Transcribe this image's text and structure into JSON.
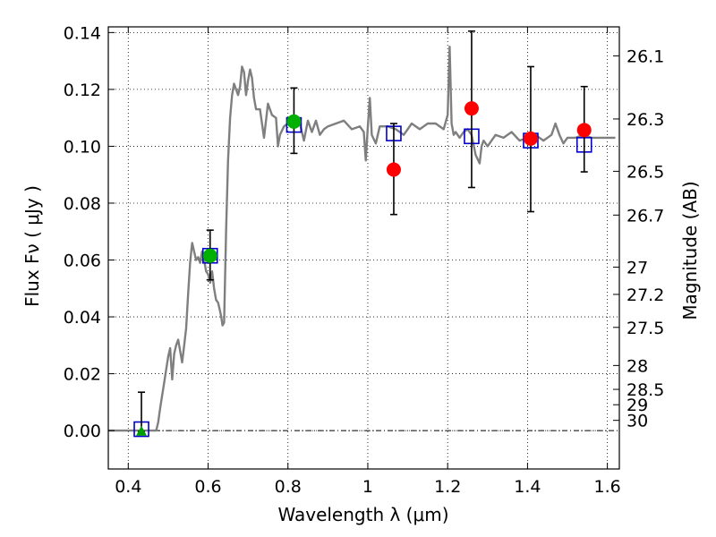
{
  "chart_data": {
    "type": "scatter",
    "xlabel": "Wavelength  λ (μm)",
    "ylabel": "Flux  Fν  ( μJy )",
    "ylabel_right": "Magnitude (AB)",
    "xlim": [
      0.35,
      1.63
    ],
    "ylim": [
      -0.0135,
      0.142
    ],
    "grid": true,
    "x_ticks": [
      0.4,
      0.6,
      0.8,
      1.0,
      1.2,
      1.4,
      1.6
    ],
    "x_tick_labels": [
      "0.4",
      "0.6",
      "0.8",
      "1",
      "1.2",
      "1.4",
      "1.6"
    ],
    "y_ticks": [
      0.0,
      0.02,
      0.04,
      0.06,
      0.08,
      0.1,
      0.12,
      0.14
    ],
    "y_tick_labels": [
      "0.00",
      "0.02",
      "0.04",
      "0.06",
      "0.08",
      "0.10",
      "0.12",
      "0.14"
    ],
    "mag_ticks": [
      {
        "label": "26.1",
        "flux": 0.1318
      },
      {
        "label": "26.3",
        "flux": 0.1096
      },
      {
        "label": "26.5",
        "flux": 0.0912
      },
      {
        "label": "26.7",
        "flux": 0.0758
      },
      {
        "label": "27",
        "flux": 0.0575
      },
      {
        "label": "27.2",
        "flux": 0.0479
      },
      {
        "label": "27.5",
        "flux": 0.0363
      },
      {
        "label": "28",
        "flux": 0.0229
      },
      {
        "label": "28.5",
        "flux": 0.0145
      },
      {
        "label": "29",
        "flux": 0.0091
      },
      {
        "label": "30",
        "flux": 0.0036
      }
    ],
    "series": [
      {
        "kind": "line",
        "color": "#7f7f7f",
        "x": [
          0.35,
          0.47,
          0.475,
          0.48,
          0.49,
          0.5,
          0.505,
          0.51,
          0.515,
          0.52,
          0.525,
          0.53,
          0.535,
          0.54,
          0.545,
          0.55,
          0.555,
          0.56,
          0.565,
          0.57,
          0.575,
          0.58,
          0.585,
          0.59,
          0.595,
          0.6,
          0.605,
          0.61,
          0.615,
          0.62,
          0.625,
          0.63,
          0.633,
          0.636,
          0.64,
          0.645,
          0.65,
          0.655,
          0.66,
          0.665,
          0.67,
          0.675,
          0.68,
          0.685,
          0.69,
          0.695,
          0.7,
          0.705,
          0.71,
          0.715,
          0.72,
          0.73,
          0.74,
          0.75,
          0.76,
          0.77,
          0.775,
          0.78,
          0.79,
          0.8,
          0.81,
          0.82,
          0.83,
          0.84,
          0.85,
          0.86,
          0.87,
          0.88,
          0.89,
          0.9,
          0.92,
          0.94,
          0.96,
          0.98,
          0.99,
          0.995,
          1.0,
          1.005,
          1.01,
          1.02,
          1.03,
          1.05,
          1.07,
          1.09,
          1.11,
          1.13,
          1.15,
          1.17,
          1.19,
          1.2,
          1.205,
          1.21,
          1.215,
          1.22,
          1.23,
          1.24,
          1.25,
          1.26,
          1.27,
          1.28,
          1.285,
          1.29,
          1.3,
          1.32,
          1.34,
          1.36,
          1.38,
          1.4,
          1.42,
          1.44,
          1.46,
          1.47,
          1.48,
          1.49,
          1.5,
          1.52,
          1.54,
          1.56,
          1.58,
          1.6,
          1.62
        ],
        "y": [
          0.0,
          0.0,
          0.003,
          0.008,
          0.017,
          0.026,
          0.029,
          0.018,
          0.027,
          0.03,
          0.032,
          0.028,
          0.024,
          0.03,
          0.036,
          0.048,
          0.059,
          0.066,
          0.063,
          0.06,
          0.061,
          0.059,
          0.063,
          0.06,
          0.056,
          0.055,
          0.052,
          0.056,
          0.05,
          0.046,
          0.045,
          0.042,
          0.04,
          0.037,
          0.038,
          0.07,
          0.095,
          0.11,
          0.118,
          0.122,
          0.12,
          0.118,
          0.121,
          0.128,
          0.126,
          0.118,
          0.123,
          0.127,
          0.124,
          0.117,
          0.113,
          0.113,
          0.103,
          0.115,
          0.111,
          0.11,
          0.1,
          0.104,
          0.107,
          0.108,
          0.11,
          0.107,
          0.108,
          0.102,
          0.109,
          0.105,
          0.109,
          0.104,
          0.106,
          0.107,
          0.108,
          0.109,
          0.106,
          0.107,
          0.105,
          0.095,
          0.107,
          0.117,
          0.104,
          0.101,
          0.107,
          0.107,
          0.106,
          0.104,
          0.108,
          0.106,
          0.108,
          0.108,
          0.106,
          0.111,
          0.135,
          0.108,
          0.104,
          0.105,
          0.103,
          0.105,
          0.106,
          0.104,
          0.097,
          0.094,
          0.1,
          0.102,
          0.1,
          0.104,
          0.103,
          0.105,
          0.102,
          0.103,
          0.104,
          0.102,
          0.104,
          0.108,
          0.104,
          0.101,
          0.103,
          0.103,
          0.104,
          0.103,
          0.103,
          0.103,
          0.103
        ]
      },
      {
        "kind": "open-squares",
        "color": "#0000cc",
        "x": [
          0.433,
          0.605,
          0.815,
          1.065,
          1.26,
          1.408,
          1.542
        ],
        "y": [
          0.0005,
          0.0615,
          0.1075,
          0.1045,
          0.1035,
          0.102,
          0.1005
        ]
      },
      {
        "kind": "errorbars",
        "color": "#000000",
        "x": [
          0.433,
          0.605,
          0.815,
          1.065,
          1.26,
          1.408,
          1.542
        ],
        "ylow": [
          -0.0003,
          0.053,
          0.0975,
          0.076,
          0.0855,
          0.077,
          0.091
        ],
        "yhigh": [
          0.0135,
          0.0705,
          0.1205,
          0.108,
          0.1405,
          0.128,
          0.121
        ]
      },
      {
        "kind": "filled-circles",
        "color": "#00b000",
        "x": [
          0.605,
          0.815
        ],
        "y": [
          0.0615,
          0.1087
        ]
      },
      {
        "kind": "filled-circles",
        "color": "#ff0000",
        "x": [
          1.065,
          1.26,
          1.408,
          1.542
        ],
        "y": [
          0.0918,
          0.1133,
          0.1027,
          0.1057
        ]
      },
      {
        "kind": "triangle",
        "color": "#00a000",
        "x": [
          0.433
        ],
        "y": [
          -0.0005
        ]
      }
    ]
  }
}
